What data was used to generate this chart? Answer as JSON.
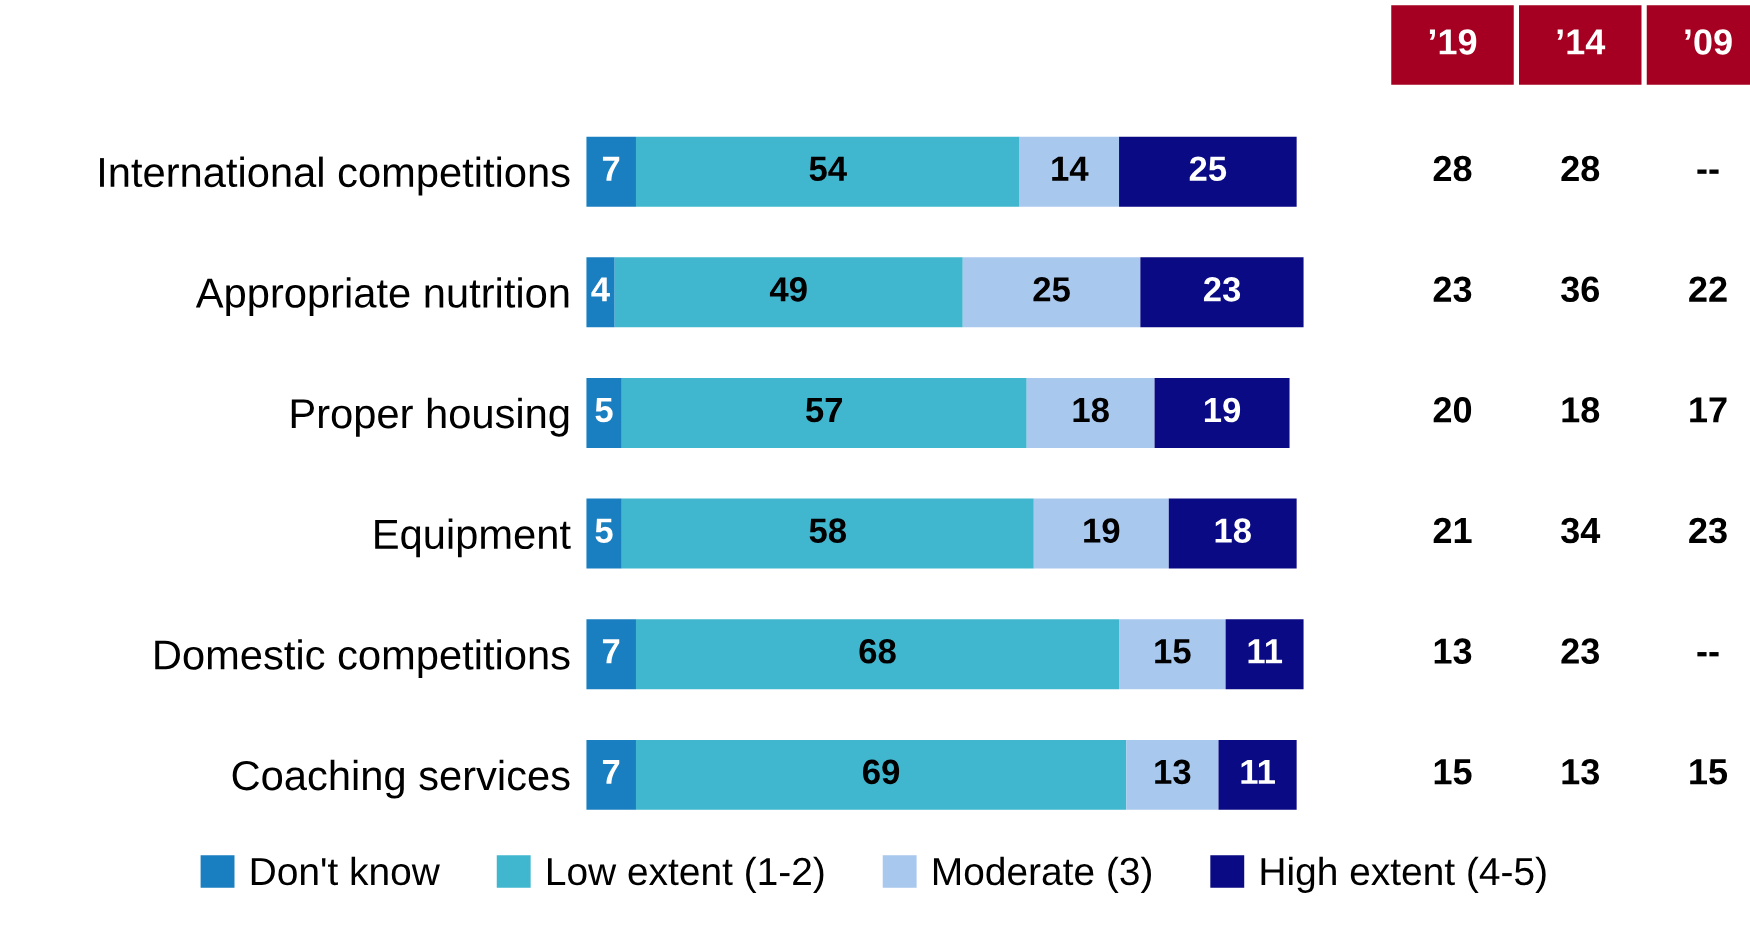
{
  "chart_data": {
    "type": "bar",
    "orientation": "horizontal",
    "stacked": true,
    "data_labels": true,
    "tick_labels": "y",
    "legend": "bottom",
    "grid": false,
    "xlim": [
      0,
      101
    ],
    "categories": [
      "International competitions",
      "Appropriate nutrition",
      "Proper housing",
      "Equipment",
      "Domestic competitions",
      "Coaching services"
    ],
    "series": [
      {
        "name": "Don't know",
        "color": "#1a7fc1",
        "values": [
          7,
          4,
          5,
          5,
          7,
          7
        ]
      },
      {
        "name": "Low extent (1-2)",
        "color": "#41b6cf",
        "values": [
          54,
          49,
          57,
          58,
          68,
          69
        ]
      },
      {
        "name": "Moderate (3)",
        "color": "#a9c8ee",
        "values": [
          14,
          25,
          18,
          19,
          15,
          13
        ]
      },
      {
        "name": "High extent (4-5)",
        "color": "#0a0a84",
        "values": [
          25,
          23,
          19,
          18,
          11,
          11
        ]
      }
    ],
    "annotations": [
      "’19",
      "’14",
      "’09",
      "28",
      "28",
      "--",
      "23",
      "36",
      "22",
      "20",
      "18",
      "17",
      "21",
      "34",
      "23",
      "13",
      "23",
      "--",
      "15",
      "13",
      "15"
    ]
  }
}
